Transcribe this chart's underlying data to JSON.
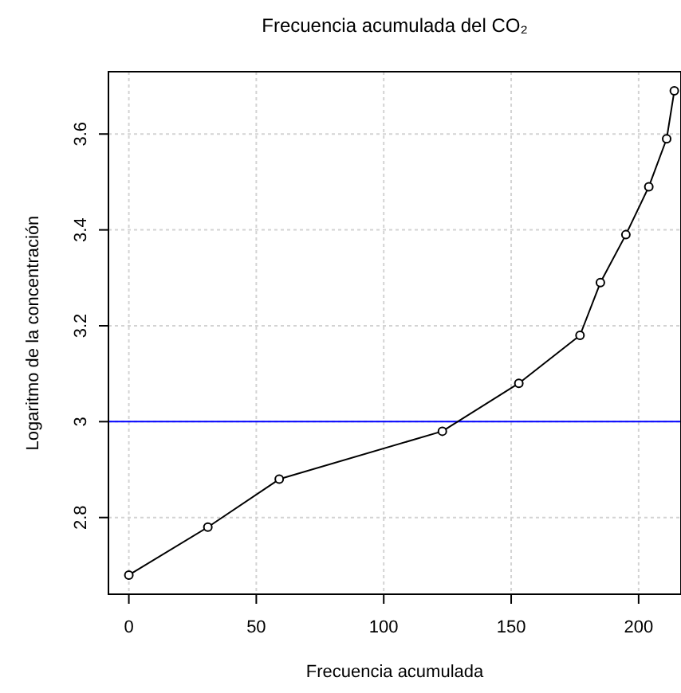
{
  "chart_data": {
    "type": "line",
    "title": "Frecuencia acumulada del CO₂",
    "xlabel": "Frecuencia acumulada",
    "ylabel": "Logaritmo de la concentración",
    "x": [
      0,
      31,
      59,
      123,
      153,
      177,
      185,
      195,
      204,
      211,
      214
    ],
    "series": [
      {
        "color": "#000000",
        "values": [
          2.68,
          2.78,
          2.88,
          2.98,
          3.08,
          3.18,
          3.29,
          3.39,
          3.49,
          3.59,
          3.69
        ]
      }
    ],
    "xlim": [
      -8,
      216
    ],
    "ylim": [
      2.64,
      3.73
    ],
    "xticks": [
      0,
      50,
      100,
      150,
      200
    ],
    "yticks": [
      2.8,
      3.0,
      3.2,
      3.4,
      3.6
    ],
    "grid": true,
    "marker": "circle",
    "line_style": "solid",
    "ref_lines": [
      {
        "axis": "y",
        "value": 3.0,
        "color": "#0000ff"
      }
    ]
  }
}
